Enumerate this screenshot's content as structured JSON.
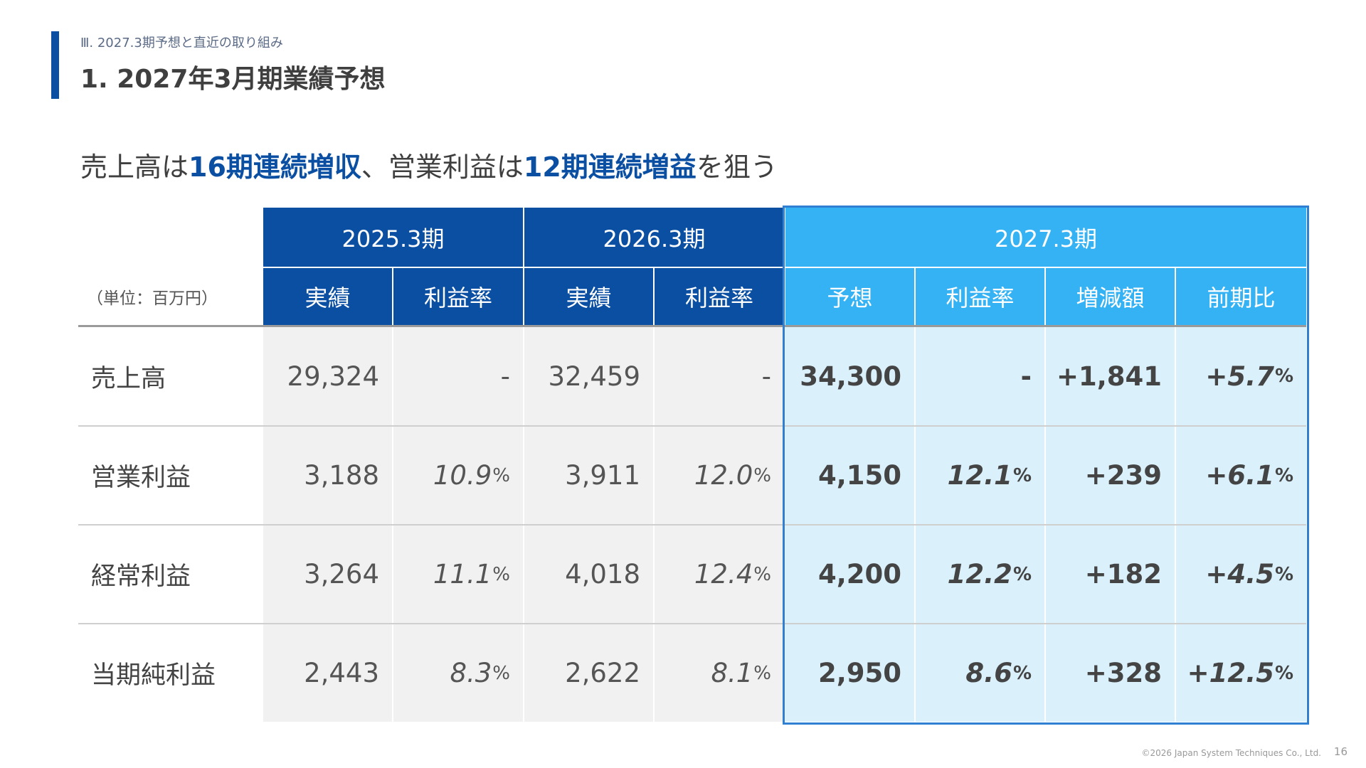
{
  "header": {
    "section": "Ⅲ. 2027.3期予想と直近の取り組み",
    "title": "1. 2027年3月期業績予想"
  },
  "headline": {
    "part1": "売上高は",
    "em1": "16期連続増収",
    "part2": "、営業利益は",
    "em2": "12期連続増益",
    "part3": "を狙う"
  },
  "table": {
    "unit": "（単位：百万円）",
    "periods": [
      "2025.3期",
      "2026.3期",
      "2027.3期"
    ],
    "subheaders": [
      "実績",
      "利益率",
      "実績",
      "利益率",
      "予想",
      "利益率",
      "増減額",
      "前期比"
    ],
    "rows": [
      {
        "label": "売上高",
        "c0": "29,324",
        "c1": "-",
        "c2": "32,459",
        "c3": "-",
        "c4": "34,300",
        "c5": "-",
        "c6": "+1,841",
        "c7n": "+5.7",
        "c7p": "%"
      },
      {
        "label": "営業利益",
        "c0": "3,188",
        "c1n": "10.9",
        "c1p": "%",
        "c2": "3,911",
        "c3n": "12.0",
        "c3p": "%",
        "c4": "4,150",
        "c5n": "12.1",
        "c5p": "%",
        "c6": "+239",
        "c7n": "+6.1",
        "c7p": "%"
      },
      {
        "label": "経常利益",
        "c0": "3,264",
        "c1n": "11.1",
        "c1p": "%",
        "c2": "4,018",
        "c3n": "12.4",
        "c3p": "%",
        "c4": "4,200",
        "c5n": "12.2",
        "c5p": "%",
        "c6": "+182",
        "c7n": "+4.5",
        "c7p": "%"
      },
      {
        "label": "当期純利益",
        "c0": "2,443",
        "c1n": "8.3",
        "c1p": "%",
        "c2": "2,622",
        "c3n": "8.1",
        "c3p": "%",
        "c4": "2,950",
        "c5n": "8.6",
        "c5p": "%",
        "c6": "+328",
        "c7n": "+12.5",
        "c7p": "%"
      }
    ]
  },
  "footer": {
    "copyright": "©2026 Japan System Techniques Co., Ltd.",
    "page": "16"
  },
  "colors": {
    "dark_blue": "#0b4fa3",
    "light_blue": "#35b2f4",
    "forecast_bg": "#daf0fb",
    "actual_bg": "#f1f1f1"
  }
}
